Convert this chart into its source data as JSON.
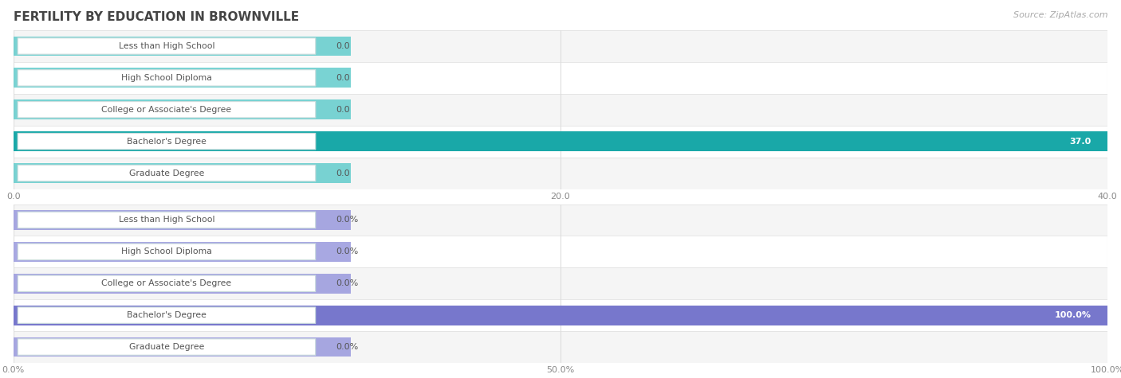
{
  "title": "FERTILITY BY EDUCATION IN BROWNVILLE",
  "source": "Source: ZipAtlas.com",
  "categories": [
    "Less than High School",
    "High School Diploma",
    "College or Associate's Degree",
    "Bachelor's Degree",
    "Graduate Degree"
  ],
  "chart1": {
    "values": [
      0.0,
      0.0,
      0.0,
      37.0,
      0.0
    ],
    "xlim": [
      0,
      40
    ],
    "xticks": [
      0.0,
      20.0,
      40.0
    ],
    "xtick_labels": [
      "0.0",
      "20.0",
      "40.0"
    ],
    "bar_color_normal": "#62cccc",
    "bar_color_highlight": "#19a8a8",
    "highlight_index": 3,
    "value_labels": [
      "0.0",
      "0.0",
      "0.0",
      "37.0",
      "0.0"
    ]
  },
  "chart2": {
    "values": [
      0.0,
      0.0,
      0.0,
      100.0,
      0.0
    ],
    "xlim": [
      0,
      100
    ],
    "xticks": [
      0.0,
      50.0,
      100.0
    ],
    "xtick_labels": [
      "0.0%",
      "50.0%",
      "100.0%"
    ],
    "bar_color_normal": "#9999dd",
    "bar_color_highlight": "#7777cc",
    "highlight_index": 3,
    "value_labels": [
      "0.0%",
      "0.0%",
      "0.0%",
      "100.0%",
      "0.0%"
    ]
  },
  "label_box_facecolor": "#ffffff",
  "label_box_edgecolor": "#ccdddd",
  "label_text_color": "#555555",
  "label_text_color_highlight": "#555555",
  "row_bg_even": "#f5f5f5",
  "row_bg_odd": "#ffffff",
  "grid_color": "#dddddd",
  "title_color": "#444444",
  "source_color": "#aaaaaa",
  "value_label_color": "#555555",
  "value_label_color_highlight": "#ffffff"
}
